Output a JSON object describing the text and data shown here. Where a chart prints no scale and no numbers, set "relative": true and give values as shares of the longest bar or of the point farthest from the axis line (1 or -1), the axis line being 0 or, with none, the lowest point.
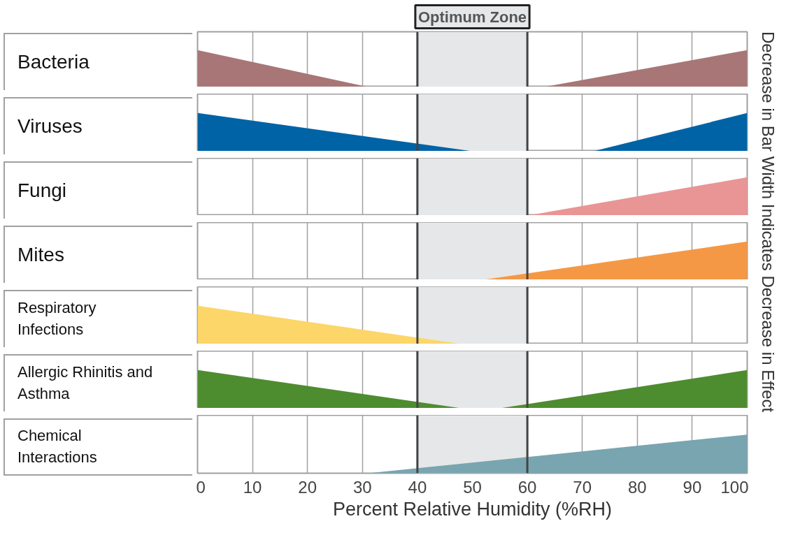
{
  "chart_data": [
    {
      "type": "area",
      "ylabel": "Bacteria",
      "y2label": "Decrease in Bar Width Indicates Decrease in Effect",
      "relative": true,
      "xlim": [
        0,
        100
      ],
      "xticks": [
        0,
        10,
        20,
        30,
        40,
        50,
        60,
        70,
        80,
        90,
        100
      ],
      "grid": "x",
      "tick_labels": false,
      "bands": [
        {
          "axis": "x",
          "from": 40,
          "to": 60,
          "label": "Optimum Zone",
          "color": "#e6e7e9"
        }
      ],
      "series": [
        {
          "color": "#a87676",
          "x": [
            0,
            31
          ],
          "values": [
            1,
            0
          ]
        },
        {
          "color": "#a87676",
          "x": [
            63,
            100
          ],
          "values": [
            0,
            1
          ]
        }
      ]
    },
    {
      "type": "area",
      "ylabel": "Viruses",
      "relative": true,
      "xlim": [
        0,
        100
      ],
      "xticks": [
        0,
        10,
        20,
        30,
        40,
        50,
        60,
        70,
        80,
        90,
        100
      ],
      "grid": "x",
      "tick_labels": false,
      "bands": [
        {
          "axis": "x",
          "from": 40,
          "to": 60,
          "color": "#e6e7e9"
        }
      ],
      "series": [
        {
          "color": "#0063a6",
          "x": [
            0,
            50
          ],
          "values": [
            1,
            0
          ]
        },
        {
          "color": "#0063a6",
          "x": [
            72,
            100
          ],
          "values": [
            0,
            1
          ]
        }
      ]
    },
    {
      "type": "area",
      "ylabel": "Fungi",
      "relative": true,
      "xlim": [
        0,
        100
      ],
      "xticks": [
        0,
        10,
        20,
        30,
        40,
        50,
        60,
        70,
        80,
        90,
        100
      ],
      "grid": "x",
      "tick_labels": false,
      "bands": [
        {
          "axis": "x",
          "from": 40,
          "to": 60,
          "color": "#e6e7e9"
        }
      ],
      "series": [
        {
          "color": "#e99595",
          "x": [
            60,
            100
          ],
          "values": [
            0,
            1
          ]
        }
      ]
    },
    {
      "type": "area",
      "ylabel": "Mites",
      "relative": true,
      "xlim": [
        0,
        100
      ],
      "xticks": [
        0,
        10,
        20,
        30,
        40,
        50,
        60,
        70,
        80,
        90,
        100
      ],
      "grid": "x",
      "tick_labels": false,
      "bands": [
        {
          "axis": "x",
          "from": 40,
          "to": 60,
          "color": "#e6e7e9"
        }
      ],
      "series": [
        {
          "color": "#f59845",
          "x": [
            52,
            100
          ],
          "values": [
            0,
            1
          ]
        }
      ]
    },
    {
      "type": "area",
      "ylabel": "Respiratory Infections",
      "relative": true,
      "xlim": [
        0,
        100
      ],
      "xticks": [
        0,
        10,
        20,
        30,
        40,
        50,
        60,
        70,
        80,
        90,
        100
      ],
      "grid": "x",
      "tick_labels": false,
      "bands": [
        {
          "axis": "x",
          "from": 40,
          "to": 60,
          "color": "#e6e7e9"
        }
      ],
      "series": [
        {
          "color": "#fcd668",
          "x": [
            0,
            48
          ],
          "values": [
            1,
            0
          ]
        }
      ]
    },
    {
      "type": "area",
      "ylabel": "Allergic Rhinitis and Asthma",
      "relative": true,
      "xlim": [
        0,
        100
      ],
      "xticks": [
        0,
        10,
        20,
        30,
        40,
        50,
        60,
        70,
        80,
        90,
        100
      ],
      "grid": "x",
      "tick_labels": false,
      "bands": [
        {
          "axis": "x",
          "from": 40,
          "to": 60,
          "color": "#e6e7e9"
        }
      ],
      "series": [
        {
          "color": "#4e8c30",
          "x": [
            0,
            48
          ],
          "values": [
            1,
            0
          ]
        },
        {
          "color": "#4e8c30",
          "x": [
            55,
            100
          ],
          "values": [
            0,
            1
          ]
        }
      ]
    },
    {
      "type": "area",
      "ylabel": "Chemical Interactions",
      "xlabel": "Percent Relative Humidity (%RH)",
      "relative": true,
      "xlim": [
        0,
        100
      ],
      "xticks": [
        0,
        10,
        20,
        30,
        40,
        50,
        60,
        70,
        80,
        90,
        100
      ],
      "grid": "x",
      "tick_labels": "x",
      "bands": [
        {
          "axis": "x",
          "from": 40,
          "to": 60,
          "color": "#e6e7e9"
        }
      ],
      "series": [
        {
          "color": "#78a5b0",
          "x": [
            31,
            100
          ],
          "values": [
            0,
            1
          ]
        }
      ]
    }
  ]
}
